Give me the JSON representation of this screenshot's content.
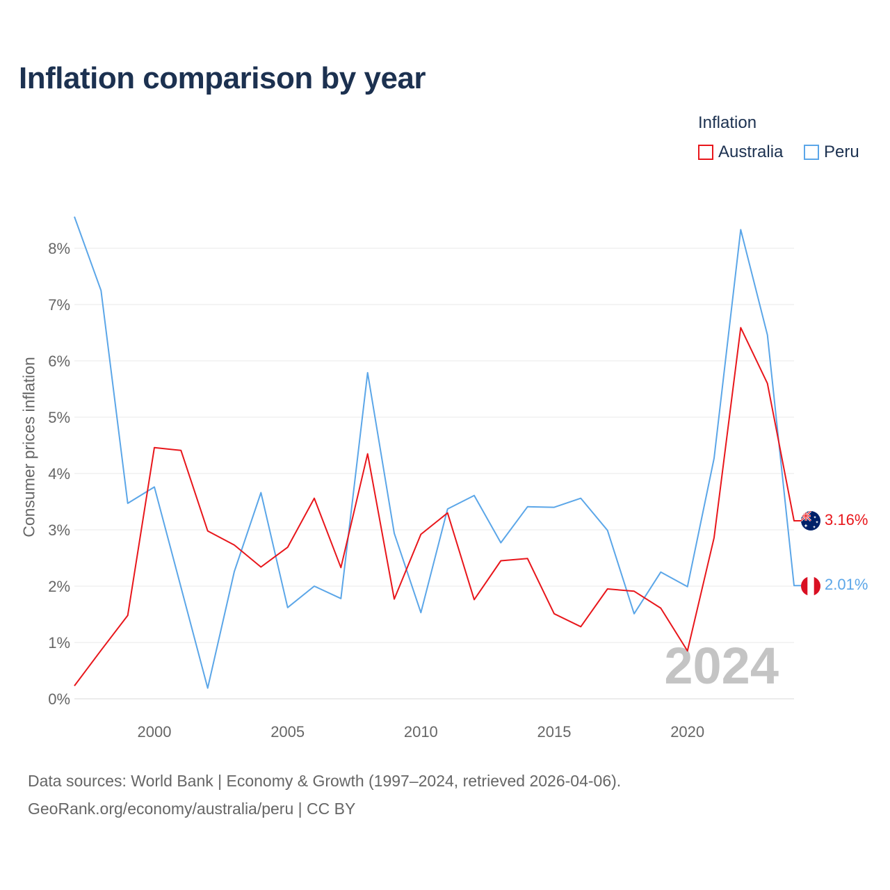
{
  "chart_data": {
    "type": "line",
    "title": "Inflation comparison by year",
    "legend_title": "Inflation",
    "legend_position": "top-right",
    "ylabel": "Consumer prices inflation",
    "xlabel": "",
    "xlim": [
      1997,
      2024
    ],
    "ylim": [
      0,
      8.6
    ],
    "x": [
      1997,
      1998,
      1999,
      2000,
      2001,
      2002,
      2003,
      2004,
      2005,
      2006,
      2007,
      2008,
      2009,
      2010,
      2011,
      2012,
      2013,
      2014,
      2015,
      2016,
      2017,
      2018,
      2019,
      2020,
      2021,
      2022,
      2023,
      2024
    ],
    "x_ticks": [
      2000,
      2005,
      2010,
      2015,
      2020
    ],
    "y_ticks": [
      0,
      1,
      2,
      3,
      4,
      5,
      6,
      7,
      8
    ],
    "y_tick_labels": [
      "0%",
      "1%",
      "2%",
      "3%",
      "4%",
      "5%",
      "6%",
      "7%",
      "8%"
    ],
    "x_tick_labels": [
      "2000",
      "2005",
      "2010",
      "2015",
      "2020"
    ],
    "grid": true,
    "series": [
      {
        "name": "Australia",
        "color": "#e8161b",
        "values": [
          0.23,
          0.86,
          1.48,
          4.46,
          4.41,
          2.98,
          2.73,
          2.34,
          2.69,
          3.56,
          2.33,
          4.35,
          1.77,
          2.92,
          3.3,
          1.76,
          2.45,
          2.49,
          1.51,
          1.28,
          1.95,
          1.91,
          1.61,
          0.85,
          2.86,
          6.59,
          5.6,
          3.16
        ],
        "end_label": "3.16%",
        "flag": "australia-flag"
      },
      {
        "name": "Peru",
        "color": "#5ba6e8",
        "values": [
          8.56,
          7.25,
          3.47,
          3.76,
          1.98,
          0.19,
          2.26,
          3.66,
          1.62,
          2.0,
          1.78,
          5.79,
          2.94,
          1.53,
          3.37,
          3.61,
          2.77,
          3.41,
          3.4,
          3.56,
          2.99,
          1.51,
          2.25,
          1.99,
          4.27,
          8.33,
          6.46,
          2.01
        ],
        "end_label": "2.01%",
        "flag": "peru-flag"
      }
    ],
    "watermark_year": "2024"
  },
  "footer": {
    "line1": "Data sources: World Bank | Economy & Growth (1997–2024, retrieved 2026-04-06).",
    "line2": "GeoRank.org/economy/australia/peru | CC BY"
  }
}
